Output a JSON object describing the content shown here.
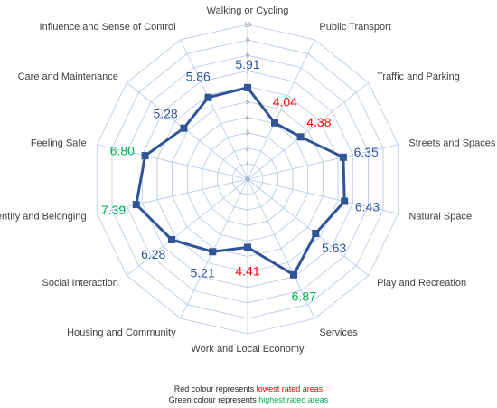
{
  "chart_data": {
    "type": "radar",
    "categories": [
      "Walking or Cycling",
      "Public Transport",
      "Traffic and Parking",
      "Streets and Spaces",
      "Natural Space",
      "Play and Recreation",
      "Services",
      "Work and Local Economy",
      "Housing and Community",
      "Social Interaction",
      "Identity and Belonging",
      "Feeling Safe",
      "Care and Maintenance",
      "Influence and Sense of Control"
    ],
    "values": [
      5.91,
      4.04,
      4.38,
      6.35,
      6.43,
      5.63,
      6.87,
      4.41,
      5.21,
      6.28,
      7.39,
      6.8,
      5.28,
      5.86
    ],
    "value_labels": [
      "5.91",
      "4.04",
      "4.38",
      "6.35",
      "6.43",
      "5.63",
      "6.87",
      "4.41",
      "5.21",
      "6.28",
      "7.39",
      "6.80",
      "5.28",
      "5.86"
    ],
    "label_colors": [
      "#2f5597",
      "#ff0000",
      "#ff0000",
      "#2f5597",
      "#2f5597",
      "#2f5597",
      "#00b050",
      "#ff0000",
      "#2f5597",
      "#2f5597",
      "#00b050",
      "#00b050",
      "#2f5597",
      "#2f5597"
    ],
    "r_ticks": [
      "0",
      "1",
      "2",
      "3",
      "4",
      "5",
      "6",
      "7",
      "8",
      "9",
      "10"
    ],
    "r_range": [
      0,
      10
    ],
    "grid": true,
    "series_color": "#2f5597",
    "grid_color": "#b4c7e7"
  },
  "legend": {
    "line1_prefix": "Red colour represents ",
    "line1_highlight": "lowest rated areas",
    "line1_color": "#ff0000",
    "line2_prefix": "Green colour represents ",
    "line2_highlight": "highest rated areas",
    "line2_color": "#00b050"
  }
}
